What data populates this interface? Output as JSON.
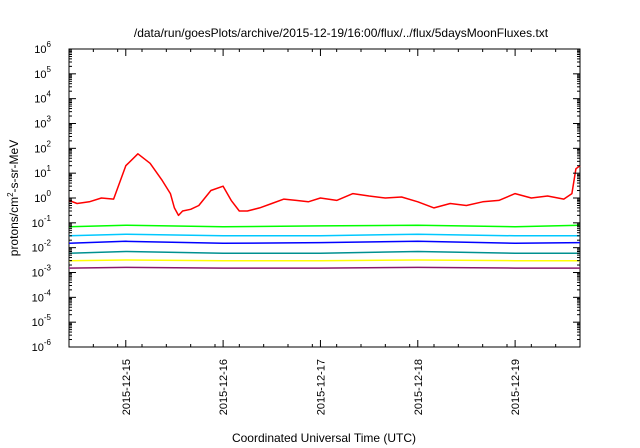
{
  "chart_data": {
    "type": "line",
    "title": "/data/run/goesPlots/archive/2015-12-19/16:00/flux/../flux/5daysMoonFluxes.txt",
    "xlabel": "Coordinated Universal Time (UTC)",
    "ylabel": {
      "base": "protons/cm",
      "sup": "2",
      "rest": "-s-sr-MeV"
    },
    "yscale": "log",
    "ylim": [
      1e-06,
      1000000.0
    ],
    "xlim": [
      "2015-12-14T10:00",
      "2015-12-19T16:00"
    ],
    "grid": false,
    "legend": "none",
    "x_ticks": [
      "2015-12-15",
      "2015-12-16",
      "2015-12-17",
      "2015-12-18",
      "2015-12-19"
    ],
    "y_ticks": [
      {
        "base": "10",
        "exp": "-6"
      },
      {
        "base": "10",
        "exp": "-5"
      },
      {
        "base": "10",
        "exp": "-4"
      },
      {
        "base": "10",
        "exp": "-3"
      },
      {
        "base": "10",
        "exp": "-2"
      },
      {
        "base": "10",
        "exp": "-1"
      },
      {
        "base": "10",
        "exp": "0"
      },
      {
        "base": "10",
        "exp": "1"
      },
      {
        "base": "10",
        "exp": "2"
      },
      {
        "base": "10",
        "exp": "3"
      },
      {
        "base": "10",
        "exp": "4"
      },
      {
        "base": "10",
        "exp": "5"
      },
      {
        "base": "10",
        "exp": "6"
      }
    ],
    "series": [
      {
        "color": "#ff0000",
        "x": [
          "2015-12-14T10:00",
          "2015-12-14T12:00",
          "2015-12-14T15:00",
          "2015-12-14T18:00",
          "2015-12-14T21:00",
          "2015-12-15T00:00",
          "2015-12-15T03:00",
          "2015-12-15T06:00",
          "2015-12-15T09:00",
          "2015-12-15T11:00",
          "2015-12-15T12:00",
          "2015-12-15T13:00",
          "2015-12-15T14:00",
          "2015-12-15T16:00",
          "2015-12-15T18:00",
          "2015-12-15T21:00",
          "2015-12-16T00:00",
          "2015-12-16T02:00",
          "2015-12-16T04:00",
          "2015-12-16T06:00",
          "2015-12-16T09:00",
          "2015-12-16T12:00",
          "2015-12-16T15:00",
          "2015-12-16T18:00",
          "2015-12-16T21:00",
          "2015-12-17T00:00",
          "2015-12-17T04:00",
          "2015-12-17T08:00",
          "2015-12-17T12:00",
          "2015-12-17T16:00",
          "2015-12-17T20:00",
          "2015-12-18T00:00",
          "2015-12-18T04:00",
          "2015-12-18T08:00",
          "2015-12-18T12:00",
          "2015-12-18T16:00",
          "2015-12-18T20:00",
          "2015-12-19T00:00",
          "2015-12-19T04:00",
          "2015-12-19T08:00",
          "2015-12-19T12:00",
          "2015-12-19T14:00",
          "2015-12-19T15:00",
          "2015-12-19T16:00"
        ],
        "y": [
          0.8,
          0.6,
          0.7,
          1.0,
          0.9,
          20,
          60,
          25,
          5,
          1.5,
          0.4,
          0.2,
          0.3,
          0.35,
          0.5,
          2.0,
          3.0,
          0.8,
          0.3,
          0.3,
          0.4,
          0.6,
          0.9,
          0.8,
          0.7,
          1.0,
          0.8,
          1.5,
          1.2,
          1.0,
          1.1,
          0.7,
          0.4,
          0.6,
          0.5,
          0.7,
          0.8,
          1.5,
          1.0,
          1.2,
          0.9,
          1.5,
          15,
          20
        ]
      },
      {
        "color": "#00ff00",
        "x": [
          "2015-12-14T10:00",
          "2015-12-15T00:00",
          "2015-12-16T00:00",
          "2015-12-17T00:00",
          "2015-12-18T00:00",
          "2015-12-19T00:00",
          "2015-12-19T16:00"
        ],
        "y": [
          0.07,
          0.08,
          0.07,
          0.075,
          0.08,
          0.07,
          0.08
        ]
      },
      {
        "color": "#00c8ff",
        "x": [
          "2015-12-14T10:00",
          "2015-12-15T00:00",
          "2015-12-16T00:00",
          "2015-12-17T00:00",
          "2015-12-18T00:00",
          "2015-12-19T00:00",
          "2015-12-19T16:00"
        ],
        "y": [
          0.03,
          0.035,
          0.03,
          0.03,
          0.035,
          0.03,
          0.03
        ]
      },
      {
        "color": "#0000ff",
        "x": [
          "2015-12-14T10:00",
          "2015-12-15T00:00",
          "2015-12-16T00:00",
          "2015-12-17T00:00",
          "2015-12-18T00:00",
          "2015-12-19T00:00",
          "2015-12-19T16:00"
        ],
        "y": [
          0.015,
          0.018,
          0.015,
          0.016,
          0.018,
          0.015,
          0.016
        ]
      },
      {
        "color": "#009090",
        "x": [
          "2015-12-14T10:00",
          "2015-12-15T00:00",
          "2015-12-16T00:00",
          "2015-12-17T00:00",
          "2015-12-18T00:00",
          "2015-12-19T00:00",
          "2015-12-19T16:00"
        ],
        "y": [
          0.006,
          0.007,
          0.006,
          0.006,
          0.007,
          0.006,
          0.006
        ]
      },
      {
        "color": "#ffff00",
        "x": [
          "2015-12-14T10:00",
          "2015-12-15T00:00",
          "2015-12-16T00:00",
          "2015-12-17T00:00",
          "2015-12-18T00:00",
          "2015-12-19T00:00",
          "2015-12-19T16:00"
        ],
        "y": [
          0.003,
          0.0032,
          0.003,
          0.003,
          0.0032,
          0.003,
          0.003
        ]
      },
      {
        "color": "#8b1a6b",
        "x": [
          "2015-12-14T10:00",
          "2015-12-15T00:00",
          "2015-12-16T00:00",
          "2015-12-17T00:00",
          "2015-12-18T00:00",
          "2015-12-19T00:00",
          "2015-12-19T16:00"
        ],
        "y": [
          0.0015,
          0.0016,
          0.0015,
          0.0015,
          0.0016,
          0.0015,
          0.0015
        ]
      }
    ]
  }
}
